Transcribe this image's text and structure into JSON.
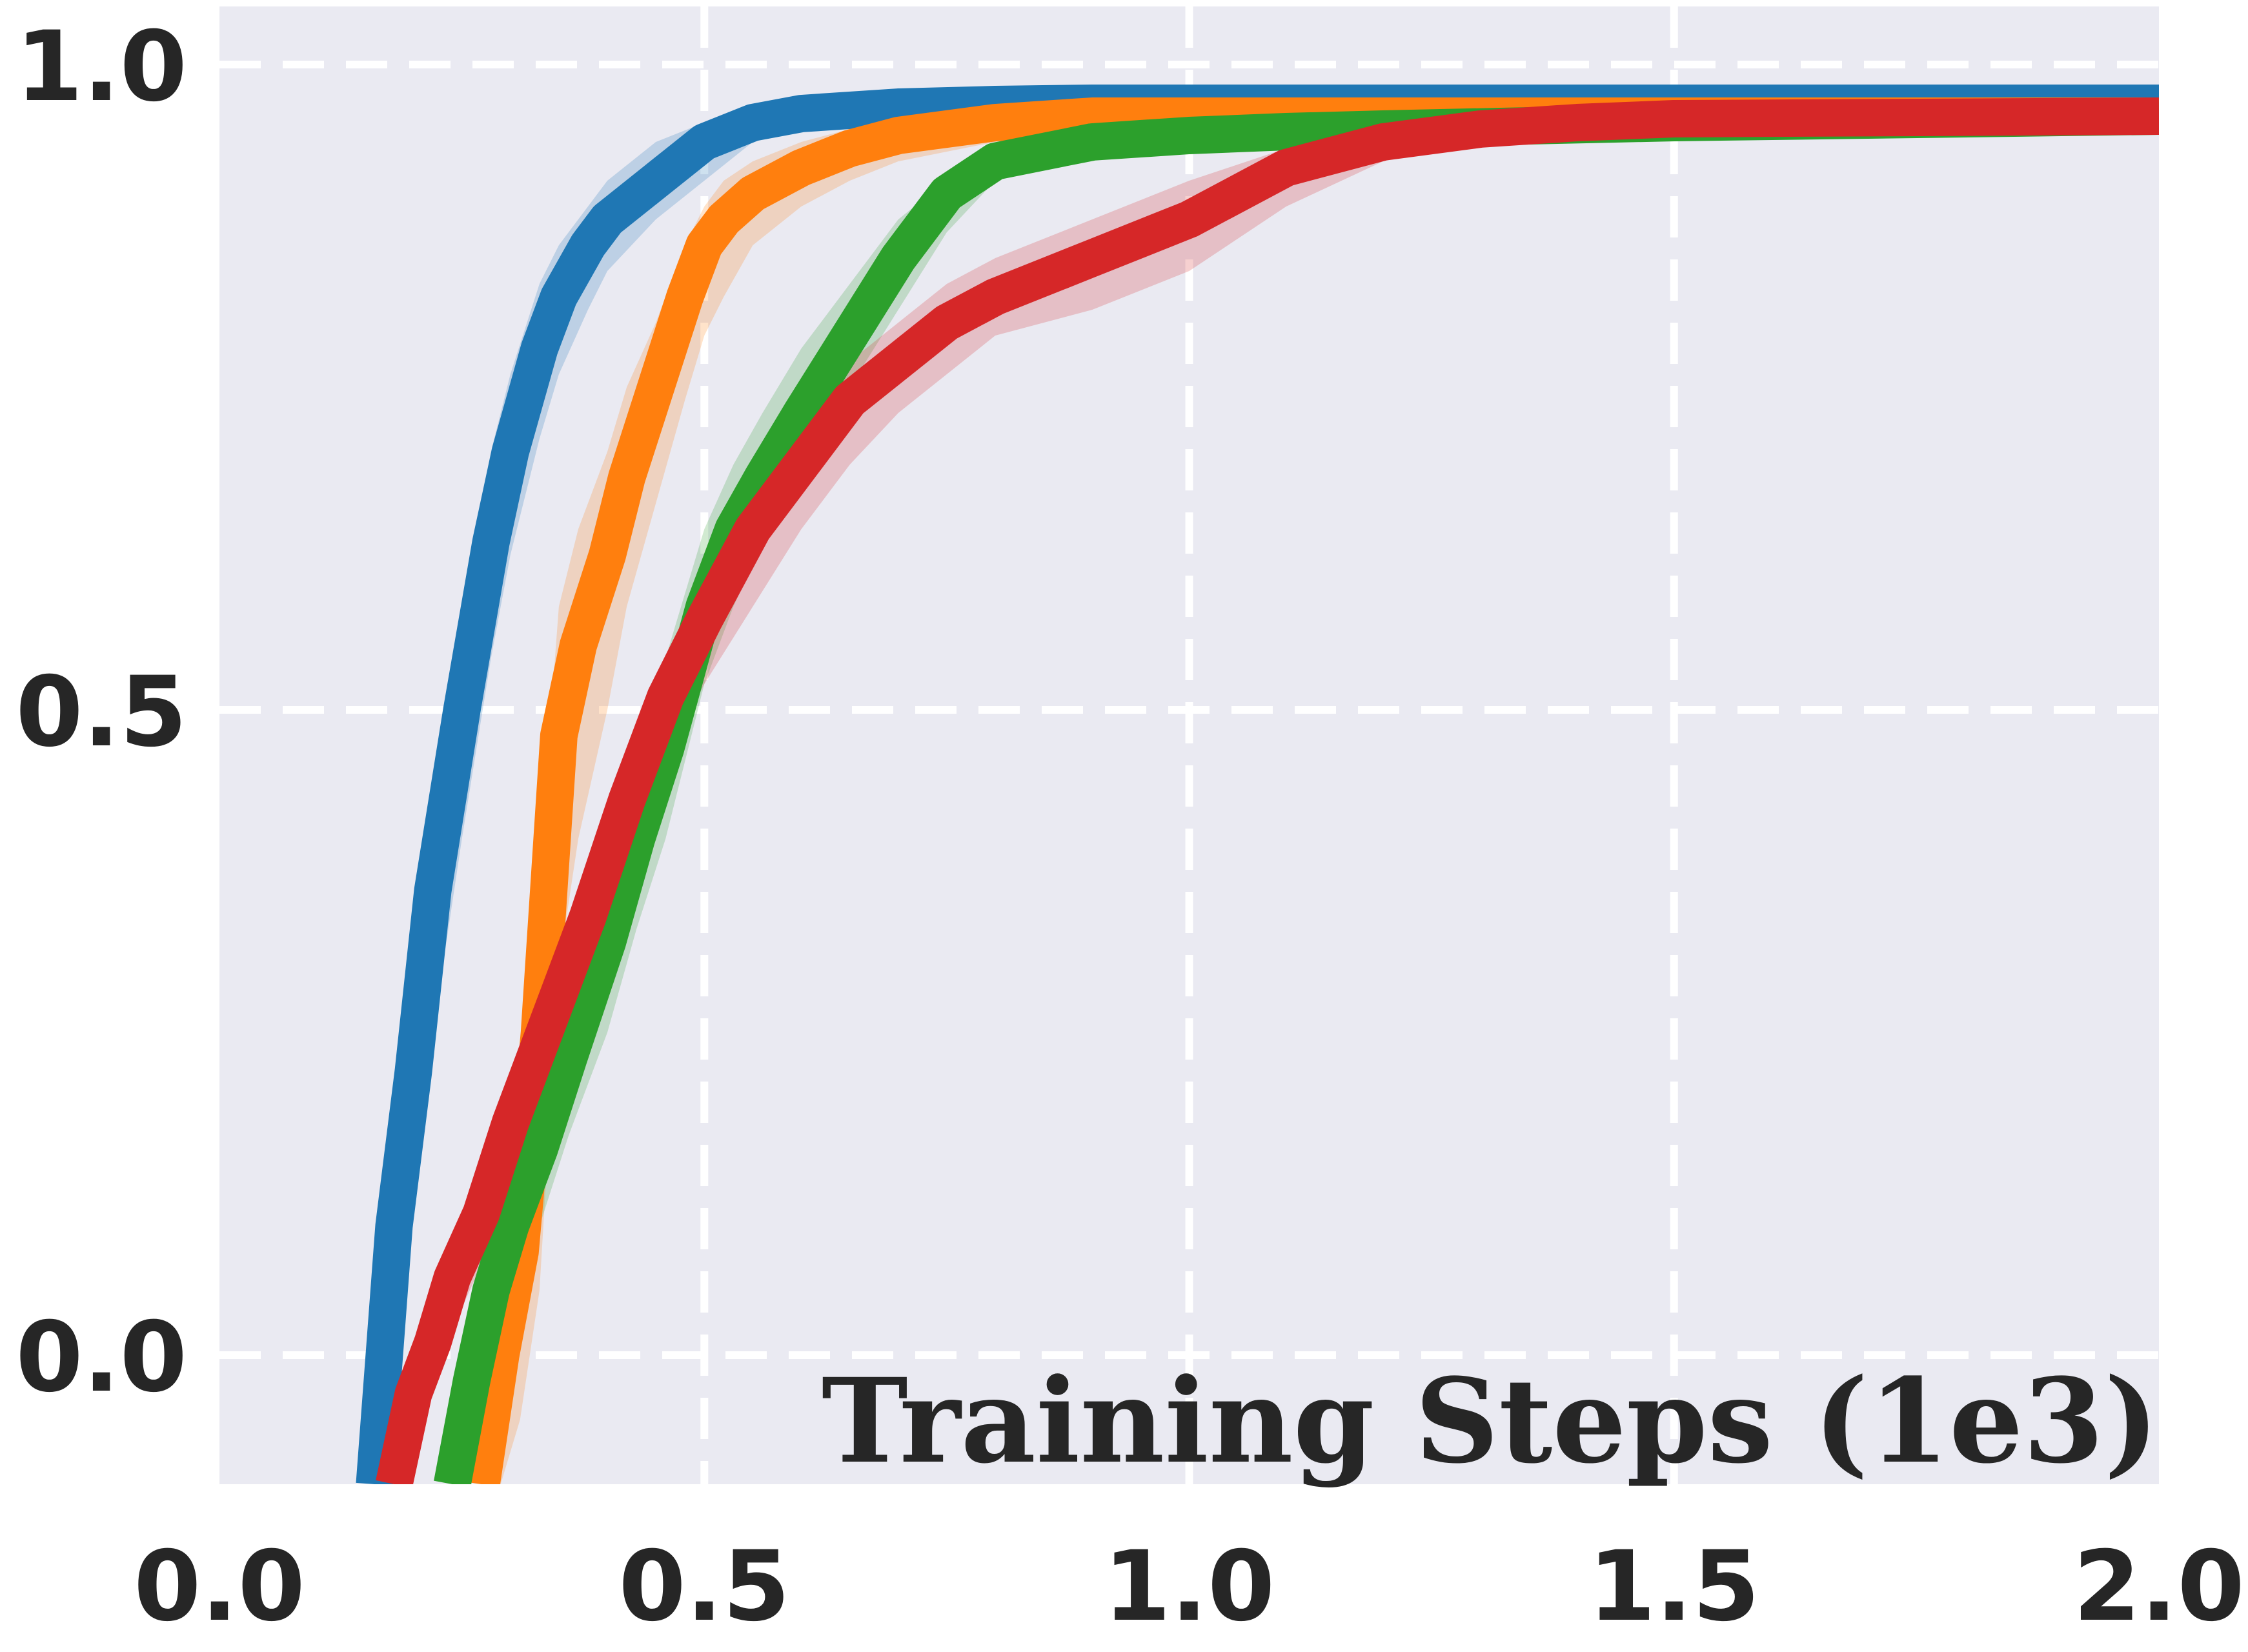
{
  "chart_data": {
    "type": "line",
    "title": "",
    "xlabel": "Training Steps (1e3)",
    "ylabel": "",
    "xlim": [
      0.0,
      2.0
    ],
    "ylim": [
      -0.1,
      1.045
    ],
    "x_ticks": [
      "0.0",
      "0.5",
      "1.0",
      "1.5",
      "2.0"
    ],
    "y_ticks": [
      "0.0",
      "0.5",
      "1.0"
    ],
    "grid": true,
    "grid_style": "dashed-white",
    "background": "#eaeaf2",
    "legend": "none",
    "series": [
      {
        "color": "#1f77b4",
        "x": [
          0.16,
          0.18,
          0.2,
          0.22,
          0.25,
          0.28,
          0.3,
          0.33,
          0.35,
          0.38,
          0.4,
          0.45,
          0.5,
          0.55,
          0.6,
          0.7,
          0.8,
          0.9,
          1.0,
          1.1,
          1.2,
          1.5,
          2.0
        ],
        "y": [
          -0.1,
          0.1,
          0.22,
          0.36,
          0.5,
          0.63,
          0.7,
          0.78,
          0.82,
          0.86,
          0.88,
          0.91,
          0.94,
          0.955,
          0.962,
          0.967,
          0.969,
          0.97,
          0.97,
          0.97,
          0.97,
          0.97,
          0.97
        ],
        "upper": [
          -0.1,
          0.16,
          0.3,
          0.44,
          0.58,
          0.7,
          0.76,
          0.83,
          0.86,
          0.89,
          0.91,
          0.94,
          0.955,
          0.962,
          0.966,
          0.97,
          0.971,
          0.972,
          0.972,
          0.972,
          0.972,
          0.972,
          0.972
        ],
        "lower": [
          -0.1,
          0.02,
          0.12,
          0.25,
          0.4,
          0.54,
          0.62,
          0.71,
          0.76,
          0.81,
          0.84,
          0.88,
          0.91,
          0.94,
          0.955,
          0.962,
          0.966,
          0.968,
          0.969,
          0.969,
          0.969,
          0.969,
          0.969
        ]
      },
      {
        "color": "#ff7f0e",
        "x": [
          0.27,
          0.29,
          0.31,
          0.33,
          0.35,
          0.37,
          0.4,
          0.42,
          0.45,
          0.48,
          0.5,
          0.52,
          0.55,
          0.6,
          0.65,
          0.7,
          0.8,
          0.9,
          1.0,
          1.2,
          1.5,
          2.0
        ],
        "y": [
          -0.1,
          0.0,
          0.08,
          0.25,
          0.48,
          0.55,
          0.62,
          0.68,
          0.75,
          0.82,
          0.86,
          0.88,
          0.9,
          0.92,
          0.935,
          0.945,
          0.955,
          0.96,
          0.96,
          0.96,
          0.96,
          0.96
        ],
        "upper": [
          -0.1,
          0.1,
          0.2,
          0.38,
          0.58,
          0.64,
          0.7,
          0.75,
          0.8,
          0.86,
          0.89,
          0.91,
          0.925,
          0.94,
          0.95,
          0.955,
          0.96,
          0.962,
          0.962,
          0.962,
          0.962,
          0.962
        ],
        "lower": [
          -0.1,
          -0.1,
          -0.05,
          0.05,
          0.3,
          0.4,
          0.5,
          0.58,
          0.66,
          0.74,
          0.79,
          0.82,
          0.86,
          0.89,
          0.91,
          0.925,
          0.94,
          0.95,
          0.955,
          0.958,
          0.958,
          0.958
        ]
      },
      {
        "color": "#2ca02c",
        "x": [
          0.24,
          0.26,
          0.28,
          0.3,
          0.33,
          0.36,
          0.4,
          0.43,
          0.46,
          0.5,
          0.53,
          0.56,
          0.6,
          0.65,
          0.7,
          0.75,
          0.8,
          0.9,
          1.0,
          1.1,
          1.2,
          1.5,
          2.0
        ],
        "y": [
          -0.1,
          -0.02,
          0.05,
          0.1,
          0.16,
          0.23,
          0.32,
          0.4,
          0.47,
          0.58,
          0.64,
          0.68,
          0.73,
          0.79,
          0.85,
          0.9,
          0.925,
          0.94,
          0.945,
          0.948,
          0.95,
          0.955,
          0.96
        ],
        "upper": [
          -0.1,
          0.02,
          0.1,
          0.16,
          0.23,
          0.3,
          0.39,
          0.47,
          0.54,
          0.64,
          0.69,
          0.73,
          0.78,
          0.83,
          0.88,
          0.91,
          0.93,
          0.942,
          0.948,
          0.951,
          0.953,
          0.957,
          0.962
        ],
        "lower": [
          -0.1,
          -0.06,
          0.0,
          0.04,
          0.1,
          0.17,
          0.25,
          0.33,
          0.4,
          0.52,
          0.58,
          0.63,
          0.69,
          0.75,
          0.81,
          0.87,
          0.91,
          0.93,
          0.94,
          0.944,
          0.947,
          0.952,
          0.958
        ]
      },
      {
        "color": "#d62728",
        "x": [
          0.18,
          0.2,
          0.22,
          0.24,
          0.27,
          0.3,
          0.34,
          0.38,
          0.42,
          0.46,
          0.5,
          0.55,
          0.6,
          0.65,
          0.7,
          0.75,
          0.8,
          0.9,
          1.0,
          1.1,
          1.2,
          1.3,
          1.4,
          1.5,
          2.0
        ],
        "y": [
          -0.1,
          -0.03,
          0.01,
          0.06,
          0.11,
          0.18,
          0.26,
          0.34,
          0.43,
          0.51,
          0.57,
          0.64,
          0.69,
          0.74,
          0.77,
          0.8,
          0.82,
          0.85,
          0.88,
          0.92,
          0.94,
          0.95,
          0.955,
          0.958,
          0.96
        ],
        "upper": [
          -0.1,
          -0.01,
          0.04,
          0.09,
          0.15,
          0.22,
          0.3,
          0.38,
          0.47,
          0.54,
          0.6,
          0.67,
          0.72,
          0.77,
          0.8,
          0.83,
          0.85,
          0.88,
          0.91,
          0.935,
          0.948,
          0.955,
          0.958,
          0.96,
          0.962
        ],
        "lower": [
          -0.1,
          -0.06,
          -0.03,
          0.02,
          0.07,
          0.13,
          0.21,
          0.29,
          0.38,
          0.46,
          0.52,
          0.58,
          0.64,
          0.69,
          0.73,
          0.76,
          0.79,
          0.81,
          0.84,
          0.89,
          0.925,
          0.942,
          0.95,
          0.955,
          0.958
        ]
      }
    ]
  }
}
